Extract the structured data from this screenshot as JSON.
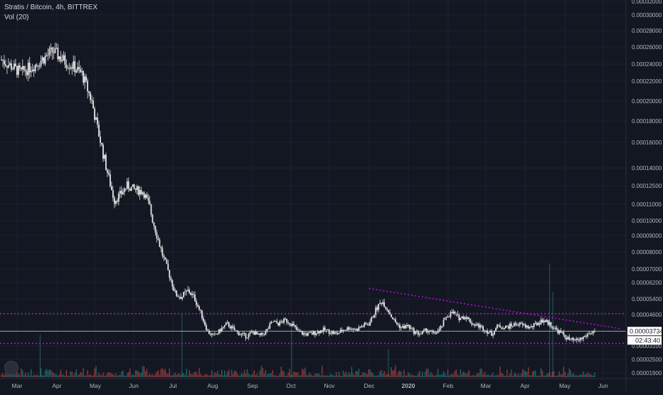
{
  "legend": {
    "title": "Stratis / Bitcoin, 4h, BITTREX",
    "indicator": "Vol (20)"
  },
  "colors": {
    "background": "#131722",
    "grid": "#1e222d",
    "candle": "#e6e6e6",
    "trendline": "#d500f9",
    "price_tag_bg": "#ffffff",
    "price_tag_text": "#131722",
    "axis_text": "#b2b5be",
    "volume_up": "#26a69a",
    "volume_down": "#ef5350"
  },
  "price_tag": {
    "price": "0.00003734",
    "countdown": "02:43:40"
  },
  "chart_data": {
    "type": "candlestick",
    "title": "Stratis / Bitcoin, 4h, BITTREX",
    "yscale": "log",
    "grid": true,
    "y_ticks": [
      "0.00032000",
      "0.00030000",
      "0.00028000",
      "0.00026000",
      "0.00024000",
      "0.00022000",
      "0.00020000",
      "0.00018000",
      "0.00016000",
      "0.00014000",
      "0.00012500",
      "0.00011000",
      "0.00010000",
      "0.00009000",
      "0.00008000",
      "0.00007000",
      "0.00006200",
      "0.00005400",
      "0.00004600",
      "0.00003100",
      "0.00002500",
      "0.00001900"
    ],
    "x_ticks": [
      "Mar",
      "Apr",
      "May",
      "Jun",
      "Jul",
      "Aug",
      "Sep",
      "Oct",
      "Nov",
      "Dec",
      "2020",
      "Feb",
      "Mar",
      "Apr",
      "May",
      "Jun"
    ],
    "last_price": 3.734e-05,
    "price_series": [
      {
        "t": 0,
        "p": 0.000245
      },
      {
        "t": 3,
        "p": 0.00023
      },
      {
        "t": 5,
        "p": 0.000238
      },
      {
        "t": 8,
        "p": 0.000255
      },
      {
        "t": 10,
        "p": 0.000242
      },
      {
        "t": 11,
        "p": 0.000238
      },
      {
        "t": 12.5,
        "p": 0.000228
      },
      {
        "t": 14,
        "p": 0.0002
      },
      {
        "t": 15,
        "p": 0.00017
      },
      {
        "t": 16.5,
        "p": 0.000135
      },
      {
        "t": 17.5,
        "p": 0.000113
      },
      {
        "t": 18.5,
        "p": 0.000118
      },
      {
        "t": 19.5,
        "p": 0.000125
      },
      {
        "t": 20.5,
        "p": 0.000122
      },
      {
        "t": 22,
        "p": 0.00012
      },
      {
        "t": 23,
        "p": 0.000108
      },
      {
        "t": 24,
        "p": 9.2e-05
      },
      {
        "t": 25,
        "p": 7.8e-05
      },
      {
        "t": 26,
        "p": 6.7e-05
      },
      {
        "t": 27,
        "p": 5.6e-05
      },
      {
        "t": 28,
        "p": 5.5e-05
      },
      {
        "t": 29,
        "p": 5.8e-05
      },
      {
        "t": 30,
        "p": 5.4e-05
      },
      {
        "t": 31,
        "p": 4.6e-05
      },
      {
        "t": 32,
        "p": 3.7e-05
      },
      {
        "t": 33,
        "p": 3.5e-05
      },
      {
        "t": 34,
        "p": 3.8e-05
      },
      {
        "t": 35,
        "p": 4.1e-05
      },
      {
        "t": 36,
        "p": 3.8e-05
      },
      {
        "t": 37,
        "p": 3.6e-05
      },
      {
        "t": 38,
        "p": 3.5e-05
      },
      {
        "t": 39,
        "p": 3.7e-05
      },
      {
        "t": 40,
        "p": 3.5e-05
      },
      {
        "t": 41,
        "p": 3.7e-05
      },
      {
        "t": 42,
        "p": 4.2e-05
      },
      {
        "t": 43,
        "p": 4.1e-05
      },
      {
        "t": 44,
        "p": 4.3e-05
      },
      {
        "t": 45,
        "p": 4.1e-05
      },
      {
        "t": 46,
        "p": 3.7e-05
      },
      {
        "t": 47,
        "p": 3.6e-05
      },
      {
        "t": 48,
        "p": 3.6e-05
      },
      {
        "t": 49,
        "p": 3.7e-05
      },
      {
        "t": 50,
        "p": 3.8e-05
      },
      {
        "t": 51,
        "p": 3.7e-05
      },
      {
        "t": 52,
        "p": 3.6e-05
      },
      {
        "t": 53,
        "p": 3.8e-05
      },
      {
        "t": 54,
        "p": 3.9e-05
      },
      {
        "t": 55,
        "p": 3.8e-05
      },
      {
        "t": 56,
        "p": 4e-05
      },
      {
        "t": 57,
        "p": 4.1e-05
      },
      {
        "t": 58,
        "p": 4.8e-05
      },
      {
        "t": 59,
        "p": 5.3e-05
      },
      {
        "t": 60,
        "p": 4.8e-05
      },
      {
        "t": 61,
        "p": 4.2e-05
      },
      {
        "t": 62,
        "p": 3.9e-05
      },
      {
        "t": 63,
        "p": 4e-05
      },
      {
        "t": 64,
        "p": 3.7e-05
      },
      {
        "t": 65,
        "p": 3.6e-05
      },
      {
        "t": 66,
        "p": 3.8e-05
      },
      {
        "t": 67,
        "p": 3.6e-05
      },
      {
        "t": 68,
        "p": 3.8e-05
      },
      {
        "t": 69,
        "p": 4.5e-05
      },
      {
        "t": 70,
        "p": 4.7e-05
      },
      {
        "t": 71,
        "p": 4.4e-05
      },
      {
        "t": 72,
        "p": 4.5e-05
      },
      {
        "t": 73,
        "p": 4.1e-05
      },
      {
        "t": 74,
        "p": 4e-05
      },
      {
        "t": 75,
        "p": 3.8e-05
      },
      {
        "t": 76,
        "p": 3.6e-05
      },
      {
        "t": 77,
        "p": 4e-05
      },
      {
        "t": 78,
        "p": 3.9e-05
      },
      {
        "t": 79,
        "p": 4e-05
      },
      {
        "t": 80,
        "p": 4.1e-05
      },
      {
        "t": 81,
        "p": 4e-05
      },
      {
        "t": 82,
        "p": 3.9e-05
      },
      {
        "t": 83,
        "p": 4.1e-05
      },
      {
        "t": 84,
        "p": 4.3e-05
      },
      {
        "t": 85,
        "p": 4.1e-05
      },
      {
        "t": 86,
        "p": 3.8e-05
      },
      {
        "t": 87,
        "p": 3.6e-05
      },
      {
        "t": 88,
        "p": 3.35e-05
      },
      {
        "t": 89,
        "p": 3.3e-05
      },
      {
        "t": 90,
        "p": 3.4e-05
      },
      {
        "t": 91,
        "p": 3.6e-05
      },
      {
        "t": 92,
        "p": 3.734e-05
      }
    ],
    "annotations": [
      {
        "type": "horizontal-dotted",
        "price": 4.65e-05
      },
      {
        "type": "horizontal-dotted",
        "price": 3.2e-05
      },
      {
        "type": "horizontal-solid",
        "price": 3.734e-05
      },
      {
        "type": "trendline-dotted",
        "from": {
          "t": 57,
          "p": 5.9e-05
        },
        "to": {
          "t": 96,
          "p": 3.85e-05
        }
      }
    ]
  }
}
